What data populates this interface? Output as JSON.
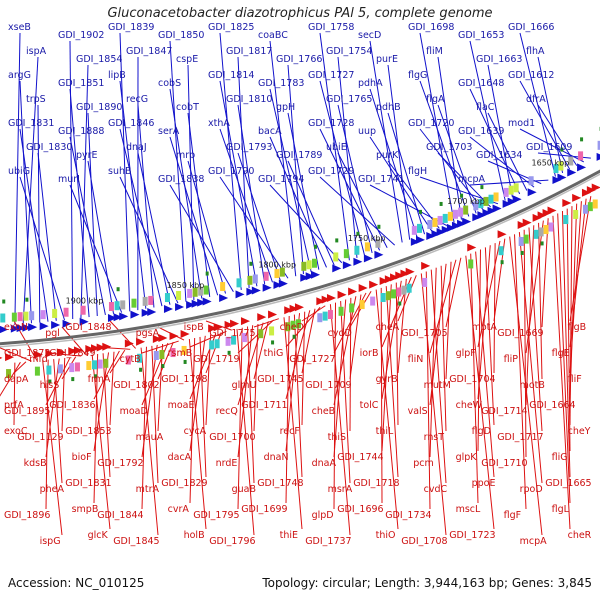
{
  "title": "Gluconacetobacter diazotrophicus PAl 5, complete genome",
  "footer": {
    "accession": "Accession: NC_010125",
    "summary": "Topology: circular; Length: 3,944,163 bp; Genes: 3,845"
  },
  "colors": {
    "forward": "#1111cc",
    "reverse": "#dd1111",
    "backbone": "#777777",
    "highlight_cyan": "#33bbee",
    "highlight_pink": "#ee88cc"
  },
  "ticks": [
    "1650 kbp",
    "1700 kbp",
    "1750 kbp",
    "1800 kbp",
    "1850 kbp",
    "1900 kbp"
  ],
  "top_labels": [
    "xseB",
    "ispA",
    "argG",
    "trpS",
    "GDI_1831",
    "GDI_1830",
    "ubiG",
    "GDI_1902",
    "GDI_1854",
    "GDI_1851",
    "GDI_1890",
    "GDI_1888",
    "pyrE",
    "murI",
    "GDI_1839",
    "GDI_1847",
    "lipB",
    "recG",
    "GDI_1846",
    "dnaJ",
    "suhB",
    "GDI_1850",
    "cspE",
    "cobS",
    "cobT",
    "serA",
    "mrp",
    "GDI_1838",
    "GDI_1825",
    "GDI_1817",
    "GDI_1814",
    "GDI_1810",
    "xthA",
    "GDI_1793",
    "GDI_1790",
    "coaBC",
    "GDI_1766",
    "GDI_1783",
    "gpH",
    "bacA",
    "GDI_1789",
    "GDI_1794",
    "GDI_1758",
    "GDI_1754",
    "GDI_1727",
    "GDI_1765",
    "GDI_1728",
    "ubiE",
    "GDI_1729",
    "secD",
    "purE",
    "pdhA",
    "pdhB",
    "uup",
    "purK",
    "GDI_1741",
    "GDI_1698",
    "fliM",
    "flgG",
    "flgA",
    "GDI_1720",
    "GDI_1703",
    "flgH",
    "GDI_1653",
    "GDI_1663",
    "GDI_1648",
    "flaC",
    "GDI_1639",
    "GDI_1634",
    "mcpA",
    "GDI_1666",
    "flhA",
    "GDI_1612",
    "dfrA",
    "mod1",
    "GDI_1609"
  ],
  "bottom_labels": [
    "flgB",
    "flgE",
    "fliF",
    "GDI_1664",
    "cheY",
    "fliG",
    "GDI_1665",
    "flgL",
    "cheR",
    "GDI_1669",
    "fliP",
    "motB",
    "GDI_1714",
    "GDI_1717",
    "GDI_1710",
    "rpoD",
    "flgF",
    "mcpA",
    "motA",
    "glpF",
    "GDI_1704",
    "cheW",
    "flgD",
    "glpK",
    "ppoE",
    "mscL",
    "GDI_1723",
    "GDI_1705",
    "fliN",
    "mutM",
    "valS",
    "rnsT",
    "pcm",
    "cvdC",
    "GDI_1734",
    "GDI_1708",
    "cheA",
    "iorB",
    "gyrB",
    "tolC",
    "thiL",
    "GDI_1744",
    "GDI_1718",
    "GDI_1696",
    "thiO",
    "cydD",
    "GDI_1727",
    "GDI_1709",
    "cheB",
    "thiS",
    "dnaA",
    "msrA",
    "glpD",
    "GDI_1737",
    "cheD",
    "thiG",
    "GDI_1745",
    "GDI_1711",
    "recF",
    "dnaN",
    "GDI_1748",
    "GDI_1699",
    "thiE",
    "GDI_1775",
    "GDI_1719",
    "glmU",
    "recQ",
    "GDI_1700",
    "nrdE",
    "guaB",
    "GDI_1795",
    "GDI_1796",
    "ispB",
    "rsmB",
    "GDI_1798",
    "moaE",
    "cycA",
    "dacA",
    "GDI_1829",
    "cvrA",
    "holB",
    "pgsA",
    "cytB",
    "GDI_1802",
    "moaD",
    "mauA",
    "GDI_1792",
    "mtrA",
    "GDI_1844",
    "GDI_1845",
    "GDI_1848",
    "GDI_1849",
    "frmA",
    "GDI_1836",
    "GDI_1853",
    "bioF",
    "GDI_1831",
    "smpB",
    "glcK",
    "pgl",
    "mfd",
    "hisS",
    "GDI_1895",
    "GDI_1129",
    "kdsB",
    "pheA",
    "GDI_1896",
    "ispG",
    "exoN",
    "GDI_1872",
    "dapA",
    "prfA",
    "exoC"
  ]
}
